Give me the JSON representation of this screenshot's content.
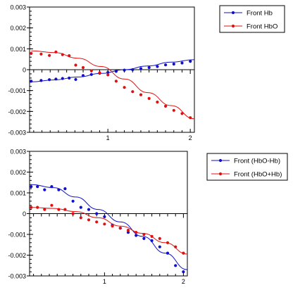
{
  "chart_data": [
    {
      "type": "scatter",
      "title": "",
      "xlabel": "",
      "ylabel": "",
      "xlim": [
        0.05,
        2.05
      ],
      "ylim": [
        -0.003,
        0.003
      ],
      "xticks": [
        1,
        2
      ],
      "yticks": [
        0.003,
        0.002,
        0.001,
        0,
        -0.001,
        -0.002,
        -0.003
      ],
      "ytick_labels": [
        "0.003",
        "0.002",
        "0.001",
        "0",
        "-0.001",
        "-0.002",
        "-0.003"
      ],
      "xtick_labels": [
        "1",
        "2"
      ],
      "legend_position": "right",
      "grid": false,
      "series": [
        {
          "name": "Front Hb",
          "color": "#1010c8",
          "x": [
            0.07,
            0.19,
            0.29,
            0.37,
            0.45,
            0.53,
            0.61,
            0.7,
            0.8,
            0.9,
            1.0,
            1.1,
            1.2,
            1.3,
            1.4,
            1.5,
            1.6,
            1.7,
            1.8,
            1.9,
            2.0
          ],
          "y": [
            -0.00055,
            -0.00052,
            -0.00048,
            -0.00045,
            -0.00042,
            -0.0004,
            -0.00047,
            -0.00028,
            -0.00023,
            -0.00017,
            -0.00013,
            -8e-05,
            -2e-05,
            0.0,
            5e-05,
            0.0001,
            0.00015,
            0.00023,
            0.00027,
            0.00032,
            0.0004
          ],
          "fit": [
            -0.00058,
            -0.00049,
            -0.00035,
            -0.00018,
            0.0,
            0.00018,
            0.00036,
            0.00048
          ]
        },
        {
          "name": "Front HbO",
          "color": "#e01010",
          "x": [
            0.07,
            0.19,
            0.29,
            0.37,
            0.45,
            0.53,
            0.61,
            0.7,
            0.8,
            0.9,
            1.0,
            1.1,
            1.2,
            1.3,
            1.4,
            1.5,
            1.6,
            1.7,
            1.8,
            1.9,
            2.0
          ],
          "y": [
            0.00078,
            0.00075,
            0.00068,
            0.00085,
            0.00072,
            0.00067,
            0.00022,
            0.0001,
            -5e-05,
            -0.00015,
            -0.00025,
            -0.00055,
            -0.00085,
            -0.00105,
            -0.0012,
            -0.00138,
            -0.00155,
            -0.00175,
            -0.00195,
            -0.0021,
            -0.0023
          ],
          "fit": [
            0.0009,
            0.00082,
            0.00055,
            0.00015,
            -0.00045,
            -0.0011,
            -0.00172,
            -0.00235
          ]
        }
      ]
    },
    {
      "type": "scatter",
      "title": "",
      "xlabel": "",
      "ylabel": "",
      "xlim": [
        0.05,
        2.05
      ],
      "ylim": [
        -0.003,
        0.003
      ],
      "xticks": [
        1,
        2
      ],
      "yticks": [
        0.003,
        0.002,
        0.001,
        0,
        -0.001,
        -0.002,
        -0.003
      ],
      "ytick_labels": [
        "0.003",
        "0.002",
        "0.001",
        "0",
        "-0.001",
        "-0.002",
        "-0.003"
      ],
      "xtick_labels": [
        "1",
        "2"
      ],
      "legend_position": "right",
      "grid": false,
      "series": [
        {
          "name": "Front (HbO-Hb)",
          "color": "#1010c8",
          "x": [
            0.07,
            0.15,
            0.24,
            0.33,
            0.42,
            0.5,
            0.6,
            0.7,
            0.8,
            0.9,
            1.0,
            1.1,
            1.2,
            1.3,
            1.4,
            1.5,
            1.6,
            1.7,
            1.8,
            1.9,
            2.0
          ],
          "y": [
            0.0013,
            0.0013,
            0.00115,
            0.0013,
            0.00115,
            0.0012,
            0.0006,
            0.0003,
            0.0002,
            0.0,
            -0.00015,
            -0.00055,
            -0.0007,
            -0.0009,
            -0.00105,
            -0.0012,
            -0.0013,
            -0.0016,
            -0.0019,
            -0.0025,
            -0.0028
          ],
          "fit": [
            0.0014,
            0.00125,
            0.0008,
            0.0002,
            -0.0004,
            -0.0011,
            -0.0019,
            -0.0027
          ]
        },
        {
          "name": "Front (HbO+Hb)",
          "color": "#e01010",
          "x": [
            0.07,
            0.15,
            0.24,
            0.33,
            0.42,
            0.5,
            0.6,
            0.7,
            0.8,
            0.9,
            1.0,
            1.1,
            1.2,
            1.3,
            1.4,
            1.5,
            1.6,
            1.7,
            1.8,
            1.9,
            2.0
          ],
          "y": [
            0.0003,
            0.0003,
            0.0002,
            0.0004,
            0.0002,
            0.0002,
            0.0,
            -0.0002,
            -0.0003,
            -0.0004,
            -0.0005,
            -0.0006,
            -0.0007,
            -0.0008,
            -0.0009,
            -0.001,
            -0.0011,
            -0.0012,
            -0.0014,
            -0.0016,
            -0.0019
          ],
          "fit": [
            0.0003,
            0.00025,
            0.0001,
            -0.0002,
            -0.0006,
            -0.00095,
            -0.0014,
            -0.00195
          ]
        }
      ]
    }
  ]
}
